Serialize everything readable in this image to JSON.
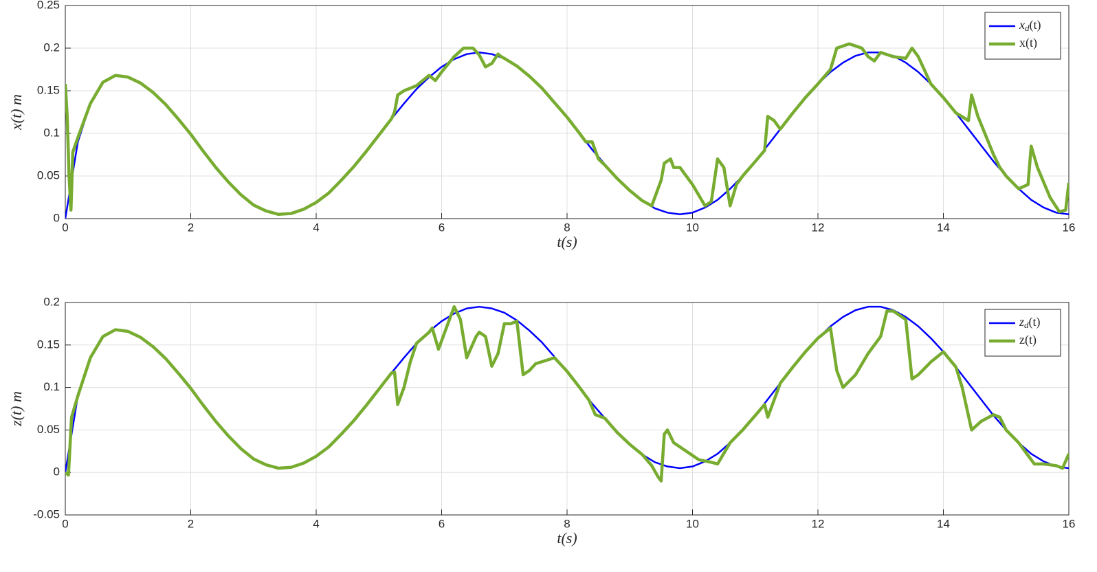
{
  "chart_data": [
    {
      "type": "line",
      "xlabel": "t(s)",
      "ylabel": "x(t) m",
      "xlim": [
        0,
        16
      ],
      "ylim": [
        0,
        0.25
      ],
      "xticks": [
        0,
        2,
        4,
        6,
        8,
        10,
        12,
        14,
        16
      ],
      "yticks": [
        0,
        0.05,
        0.1,
        0.15,
        0.2,
        0.25
      ],
      "grid": true,
      "legend": "upper right",
      "series": [
        {
          "name": "xd(t)",
          "color": "#0000ff",
          "x": [
            0,
            0.2,
            0.4,
            0.6,
            0.8,
            1,
            1.2,
            1.4,
            1.6,
            1.8,
            2,
            2.2,
            2.4,
            2.6,
            2.8,
            3,
            3.2,
            3.4,
            3.6,
            3.8,
            4,
            4.2,
            4.4,
            4.6,
            4.8,
            5,
            5.2,
            5.4,
            5.6,
            5.8,
            6,
            6.2,
            6.4,
            6.6,
            6.8,
            7,
            7.2,
            7.4,
            7.6,
            7.8,
            8,
            8.2,
            8.4,
            8.6,
            8.8,
            9,
            9.2,
            9.4,
            9.6,
            9.8,
            10,
            10.2,
            10.4,
            10.6,
            10.8,
            11,
            11.2,
            11.4,
            11.6,
            11.8,
            12,
            12.2,
            12.4,
            12.6,
            12.8,
            13,
            13.2,
            13.4,
            13.6,
            13.8,
            14,
            14.2,
            14.4,
            14.6,
            14.8,
            15,
            15.2,
            15.4,
            15.6,
            15.8,
            16
          ],
          "values": [
            0,
            0.09,
            0.135,
            0.16,
            0.168,
            0.166,
            0.159,
            0.148,
            0.134,
            0.117,
            0.099,
            0.079,
            0.06,
            0.043,
            0.028,
            0.016,
            0.009,
            0.005,
            0.006,
            0.011,
            0.019,
            0.03,
            0.045,
            0.061,
            0.079,
            0.098,
            0.117,
            0.135,
            0.152,
            0.166,
            0.178,
            0.187,
            0.193,
            0.195,
            0.193,
            0.188,
            0.179,
            0.167,
            0.153,
            0.136,
            0.119,
            0.1,
            0.081,
            0.064,
            0.047,
            0.033,
            0.021,
            0.012,
            0.007,
            0.005,
            0.007,
            0.013,
            0.022,
            0.035,
            0.05,
            0.067,
            0.086,
            0.105,
            0.124,
            0.142,
            0.158,
            0.172,
            0.183,
            0.191,
            0.195,
            0.195,
            0.191,
            0.183,
            0.172,
            0.158,
            0.142,
            0.124,
            0.105,
            0.086,
            0.067,
            0.05,
            0.035,
            0.022,
            0.013,
            0.007,
            0.005
          ]
        },
        {
          "name": "x(t)",
          "color": "#77ac30",
          "x": [
            0,
            0.03,
            0.06,
            0.09,
            0.12,
            0.2,
            0.4,
            0.6,
            0.8,
            1,
            1.2,
            1.4,
            1.6,
            1.8,
            2,
            2.2,
            2.4,
            2.6,
            2.8,
            3,
            3.2,
            3.4,
            3.6,
            3.8,
            4,
            4.2,
            4.4,
            4.6,
            4.8,
            5,
            5.2,
            5.25,
            5.3,
            5.4,
            5.6,
            5.8,
            5.9,
            6,
            6.2,
            6.35,
            6.5,
            6.6,
            6.7,
            6.8,
            6.9,
            6.95,
            7,
            7.2,
            7.4,
            7.6,
            7.8,
            8,
            8.2,
            8.3,
            8.4,
            8.5,
            8.6,
            8.8,
            9,
            9.2,
            9.35,
            9.5,
            9.55,
            9.65,
            9.7,
            9.8,
            10,
            10.2,
            10.3,
            10.4,
            10.5,
            10.6,
            10.7,
            10.8,
            11,
            11.15,
            11.2,
            11.3,
            11.4,
            11.6,
            11.8,
            12,
            12.2,
            12.3,
            12.5,
            12.7,
            12.8,
            12.9,
            13,
            13.2,
            13.4,
            13.5,
            13.6,
            13.8,
            14,
            14.2,
            14.4,
            14.45,
            14.55,
            14.8,
            14.9,
            15,
            15.2,
            15.35,
            15.4,
            15.5,
            15.7,
            15.85,
            15.95,
            16
          ],
          "values": [
            0.158,
            0.12,
            0.05,
            0.01,
            0.078,
            0.095,
            0.135,
            0.16,
            0.168,
            0.166,
            0.159,
            0.148,
            0.134,
            0.117,
            0.099,
            0.079,
            0.06,
            0.043,
            0.028,
            0.016,
            0.009,
            0.005,
            0.006,
            0.011,
            0.019,
            0.03,
            0.045,
            0.061,
            0.079,
            0.098,
            0.117,
            0.125,
            0.145,
            0.15,
            0.156,
            0.168,
            0.162,
            0.172,
            0.19,
            0.2,
            0.2,
            0.192,
            0.178,
            0.182,
            0.193,
            0.19,
            0.188,
            0.179,
            0.167,
            0.153,
            0.136,
            0.119,
            0.1,
            0.09,
            0.09,
            0.07,
            0.063,
            0.047,
            0.033,
            0.021,
            0.015,
            0.045,
            0.065,
            0.07,
            0.06,
            0.06,
            0.04,
            0.015,
            0.02,
            0.07,
            0.06,
            0.015,
            0.04,
            0.05,
            0.067,
            0.08,
            0.12,
            0.115,
            0.105,
            0.124,
            0.142,
            0.158,
            0.175,
            0.2,
            0.205,
            0.2,
            0.19,
            0.185,
            0.195,
            0.19,
            0.188,
            0.2,
            0.19,
            0.158,
            0.142,
            0.124,
            0.115,
            0.145,
            0.12,
            0.075,
            0.06,
            0.05,
            0.035,
            0.04,
            0.085,
            0.06,
            0.025,
            0.008,
            0.01,
            0.042
          ]
        }
      ]
    },
    {
      "type": "line",
      "xlabel": "t(s)",
      "ylabel": "z(t) m",
      "xlim": [
        0,
        16
      ],
      "ylim": [
        -0.05,
        0.2
      ],
      "xticks": [
        0,
        2,
        4,
        6,
        8,
        10,
        12,
        14,
        16
      ],
      "yticks": [
        -0.05,
        0,
        0.05,
        0.1,
        0.15,
        0.2
      ],
      "grid": true,
      "legend": "upper right",
      "series": [
        {
          "name": "zd(t)",
          "color": "#0000ff",
          "x": [
            0,
            0.2,
            0.4,
            0.6,
            0.8,
            1,
            1.2,
            1.4,
            1.6,
            1.8,
            2,
            2.2,
            2.4,
            2.6,
            2.8,
            3,
            3.2,
            3.4,
            3.6,
            3.8,
            4,
            4.2,
            4.4,
            4.6,
            4.8,
            5,
            5.2,
            5.4,
            5.6,
            5.8,
            6,
            6.2,
            6.4,
            6.6,
            6.8,
            7,
            7.2,
            7.4,
            7.6,
            7.8,
            8,
            8.2,
            8.4,
            8.6,
            8.8,
            9,
            9.2,
            9.4,
            9.6,
            9.8,
            10,
            10.2,
            10.4,
            10.6,
            10.8,
            11,
            11.2,
            11.4,
            11.6,
            11.8,
            12,
            12.2,
            12.4,
            12.6,
            12.8,
            13,
            13.2,
            13.4,
            13.6,
            13.8,
            14,
            14.2,
            14.4,
            14.6,
            14.8,
            15,
            15.2,
            15.4,
            15.6,
            15.8,
            16
          ],
          "values": [
            0,
            0.09,
            0.135,
            0.16,
            0.168,
            0.166,
            0.159,
            0.148,
            0.134,
            0.117,
            0.099,
            0.079,
            0.06,
            0.043,
            0.028,
            0.016,
            0.009,
            0.005,
            0.006,
            0.011,
            0.019,
            0.03,
            0.045,
            0.061,
            0.079,
            0.098,
            0.117,
            0.135,
            0.152,
            0.166,
            0.178,
            0.187,
            0.193,
            0.195,
            0.193,
            0.188,
            0.179,
            0.167,
            0.153,
            0.136,
            0.119,
            0.1,
            0.081,
            0.064,
            0.047,
            0.033,
            0.021,
            0.012,
            0.007,
            0.005,
            0.007,
            0.013,
            0.022,
            0.035,
            0.05,
            0.067,
            0.086,
            0.105,
            0.124,
            0.142,
            0.158,
            0.172,
            0.183,
            0.191,
            0.195,
            0.195,
            0.191,
            0.183,
            0.172,
            0.158,
            0.142,
            0.124,
            0.105,
            0.086,
            0.067,
            0.05,
            0.035,
            0.022,
            0.013,
            0.007,
            0.005
          ]
        },
        {
          "name": "z(t)",
          "color": "#77ac30",
          "x": [
            0,
            0.05,
            0.1,
            0.2,
            0.4,
            0.6,
            0.8,
            1,
            1.2,
            1.4,
            1.6,
            1.8,
            2,
            2.2,
            2.4,
            2.6,
            2.8,
            3,
            3.2,
            3.4,
            3.6,
            3.8,
            4,
            4.2,
            4.4,
            4.6,
            4.8,
            5,
            5.2,
            5.25,
            5.3,
            5.4,
            5.5,
            5.6,
            5.8,
            5.85,
            5.95,
            6.1,
            6.2,
            6.3,
            6.4,
            6.55,
            6.6,
            6.7,
            6.8,
            6.9,
            7,
            7.1,
            7.2,
            7.3,
            7.4,
            7.5,
            7.8,
            8,
            8.2,
            8.35,
            8.45,
            8.6,
            8.8,
            9,
            9.2,
            9.35,
            9.45,
            9.5,
            9.55,
            9.6,
            9.7,
            9.9,
            10.1,
            10.3,
            10.4,
            10.6,
            10.8,
            11,
            11.15,
            11.2,
            11.3,
            11.4,
            11.6,
            11.8,
            12,
            12.2,
            12.3,
            12.4,
            12.6,
            12.8,
            13,
            13.1,
            13.2,
            13.4,
            13.5,
            13.6,
            13.8,
            14,
            14.2,
            14.3,
            14.45,
            14.6,
            14.8,
            14.9,
            15,
            15.2,
            15.35,
            15.45,
            15.6,
            15.8,
            15.9,
            16
          ],
          "values": [
            0,
            -0.003,
            0.065,
            0.09,
            0.135,
            0.16,
            0.168,
            0.166,
            0.159,
            0.148,
            0.134,
            0.117,
            0.099,
            0.079,
            0.06,
            0.043,
            0.028,
            0.016,
            0.009,
            0.005,
            0.006,
            0.011,
            0.019,
            0.03,
            0.045,
            0.061,
            0.079,
            0.098,
            0.117,
            0.118,
            0.08,
            0.1,
            0.13,
            0.152,
            0.165,
            0.17,
            0.145,
            0.175,
            0.195,
            0.18,
            0.135,
            0.16,
            0.165,
            0.16,
            0.125,
            0.14,
            0.175,
            0.175,
            0.178,
            0.115,
            0.12,
            0.128,
            0.135,
            0.119,
            0.1,
            0.085,
            0.068,
            0.064,
            0.047,
            0.033,
            0.021,
            0.008,
            -0.005,
            -0.01,
            0.045,
            0.05,
            0.035,
            0.025,
            0.015,
            0.012,
            0.01,
            0.035,
            0.05,
            0.067,
            0.08,
            0.065,
            0.085,
            0.105,
            0.124,
            0.142,
            0.158,
            0.17,
            0.12,
            0.1,
            0.115,
            0.14,
            0.16,
            0.19,
            0.19,
            0.18,
            0.11,
            0.115,
            0.13,
            0.142,
            0.124,
            0.1,
            0.05,
            0.06,
            0.068,
            0.065,
            0.05,
            0.035,
            0.02,
            0.01,
            0.01,
            0.008,
            0.005,
            0.022
          ]
        }
      ]
    }
  ]
}
